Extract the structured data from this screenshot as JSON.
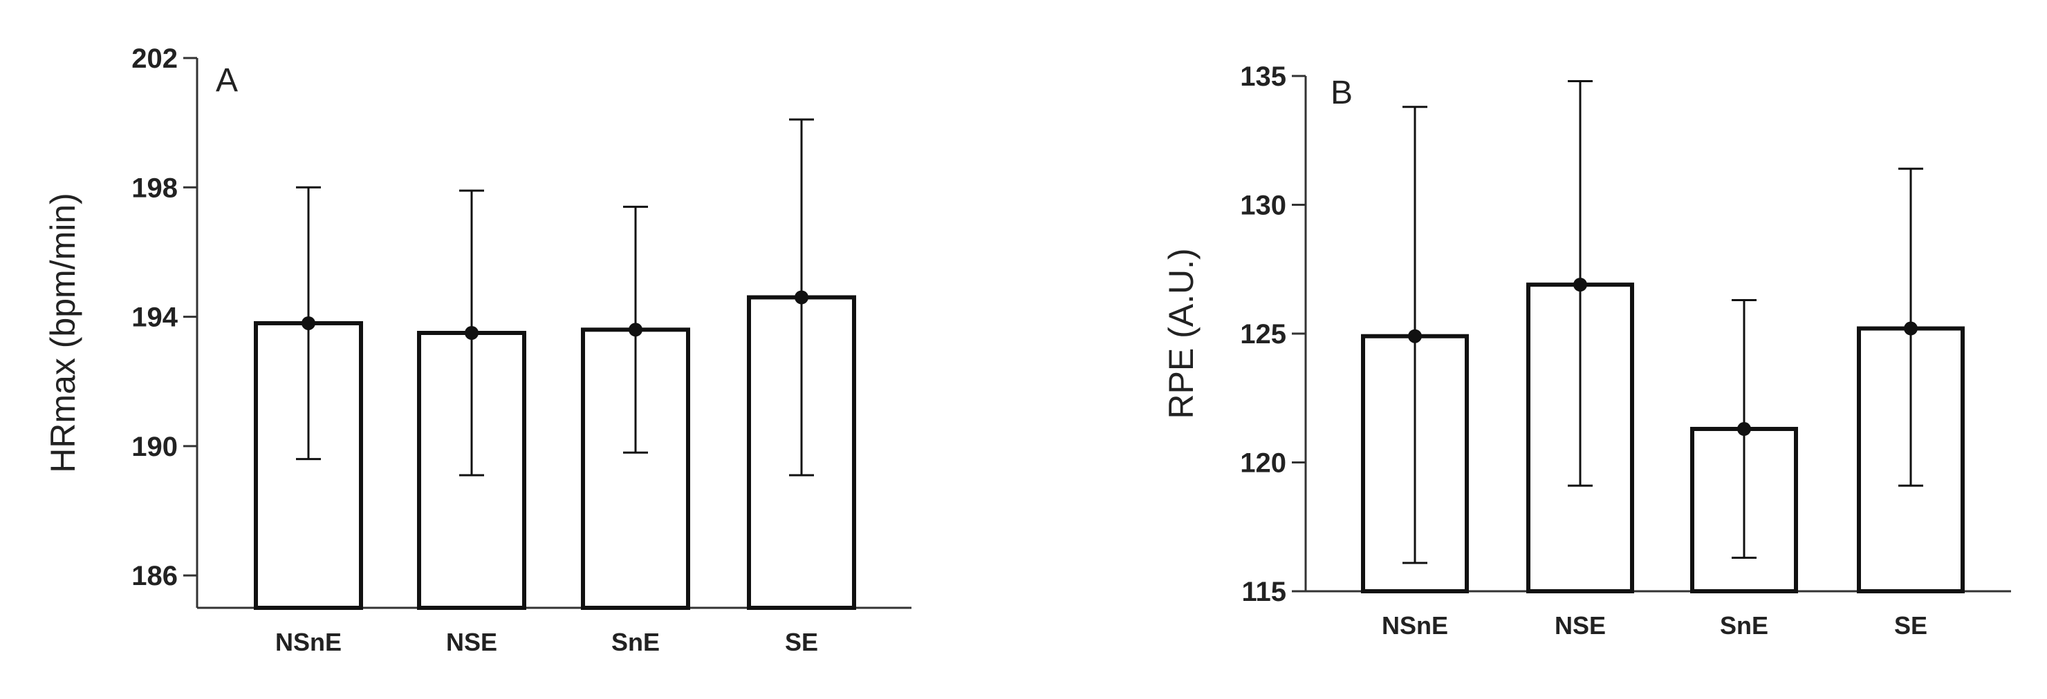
{
  "chart_data": [
    {
      "type": "bar",
      "panel_label": "A",
      "categories": [
        "NSnE",
        "NSE",
        "SnE",
        "SE"
      ],
      "values": [
        193.8,
        193.5,
        193.6,
        194.6
      ],
      "error_low": [
        189.6,
        189.1,
        189.8,
        189.1
      ],
      "error_high": [
        198.0,
        197.9,
        197.4,
        200.1
      ],
      "ylabel": "HRmax (bpm/min)",
      "xlabel": "",
      "title": "",
      "ylim": [
        185,
        202
      ],
      "yticks": [
        186,
        190,
        194,
        198,
        202
      ],
      "grid": false,
      "bar_fill": "#ffffff",
      "bar_edge": "#111111"
    },
    {
      "type": "bar",
      "panel_label": "B",
      "categories": [
        "NSnE",
        "NSE",
        "SnE",
        "SE"
      ],
      "values": [
        124.9,
        126.9,
        121.3,
        125.2
      ],
      "error_low": [
        116.1,
        119.1,
        116.3,
        119.1
      ],
      "error_high": [
        133.8,
        134.8,
        126.3,
        131.4
      ],
      "ylabel": "RPE (A.U.)",
      "xlabel": "",
      "title": "",
      "ylim": [
        115,
        135
      ],
      "yticks": [
        115,
        120,
        125,
        130,
        135
      ],
      "grid": false,
      "bar_fill": "#ffffff",
      "bar_edge": "#111111"
    }
  ]
}
